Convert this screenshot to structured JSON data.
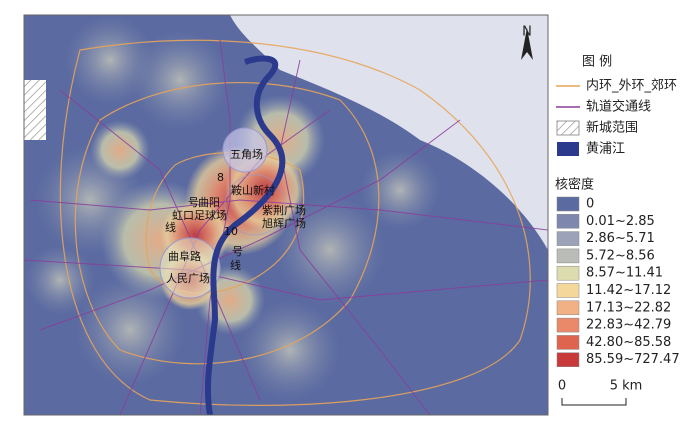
{
  "legend": {
    "title": "图 例",
    "items": [
      {
        "label": "内环_外环_郊环",
        "kind": "line",
        "color": "#e8a45a"
      },
      {
        "label": "轨道交通线",
        "kind": "line",
        "color": "#8a3c9c"
      },
      {
        "label": "新城范围",
        "kind": "hatch",
        "color": "#999999"
      },
      {
        "label": "黄浦江",
        "kind": "box",
        "color": "#2c3a8e"
      }
    ]
  },
  "density": {
    "title": "核密度",
    "classes": [
      {
        "label": "0",
        "color": "#5b6ba1"
      },
      {
        "label": "0.01~2.85",
        "color": "#7e88ae"
      },
      {
        "label": "2.86~5.71",
        "color": "#9ca3b9"
      },
      {
        "label": "5.72~8.56",
        "color": "#babdb7"
      },
      {
        "label": "8.57~11.41",
        "color": "#dcdcae"
      },
      {
        "label": "11.42~17.12",
        "color": "#f4d79a"
      },
      {
        "label": "17.13~22.82",
        "color": "#f2b184"
      },
      {
        "label": "22.83~42.79",
        "color": "#e9896a"
      },
      {
        "label": "42.80~85.58",
        "color": "#de6450"
      },
      {
        "label": "85.59~727.47",
        "color": "#c8393a"
      }
    ]
  },
  "scale": {
    "start": "0",
    "end": "5 km"
  },
  "north": "N",
  "places": [
    "五角场",
    "鞍山新村",
    "紫荆广场",
    "旭辉广场",
    "曲阳",
    "虹口足球场",
    "曲阜路",
    "人民广场",
    "8",
    "号",
    "线",
    "10",
    "号",
    "线"
  ]
}
